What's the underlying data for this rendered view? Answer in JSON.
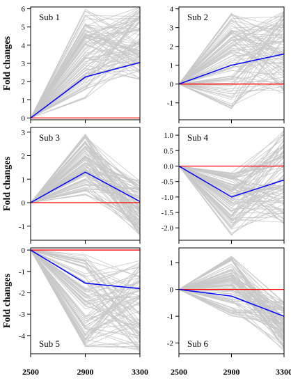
{
  "chart_data": [
    {
      "type": "line",
      "label": "Sub 1",
      "x": [
        2500,
        2900,
        3300
      ],
      "ylim": [
        -0.1,
        6.1
      ],
      "yticks": [
        0,
        1,
        2,
        3,
        4,
        5,
        6
      ],
      "mean": [
        0,
        2.25,
        3.05
      ],
      "baseline": [
        0,
        0,
        0
      ],
      "band": {
        "mid_low": 1.0,
        "mid_high": 6.0,
        "end_low": 2.1,
        "end_high": 6.1
      },
      "ylabel": "Fold changes"
    },
    {
      "type": "line",
      "label": "Sub 2",
      "x": [
        2500,
        2900,
        3300
      ],
      "ylim": [
        -1.9,
        4.1
      ],
      "yticks": [
        -1,
        0,
        1,
        2,
        3,
        4
      ],
      "mean": [
        0,
        1.0,
        1.6
      ],
      "baseline": [
        0,
        0,
        0
      ],
      "band": {
        "mid_low": -1.5,
        "mid_high": 3.8,
        "end_low": -0.5,
        "end_high": 3.9
      },
      "ylabel": ""
    },
    {
      "type": "line",
      "label": "Sub 3",
      "x": [
        2500,
        2900,
        3300
      ],
      "ylim": [
        -1.6,
        3.2
      ],
      "yticks": [
        -1,
        0,
        1,
        2,
        3
      ],
      "mean": [
        0,
        1.3,
        0.05
      ],
      "baseline": [
        0,
        0,
        0
      ],
      "band": {
        "mid_low": 0.3,
        "mid_high": 3.0,
        "end_low": -1.4,
        "end_high": 1.0
      },
      "ylabel": "Fold changes"
    },
    {
      "type": "line",
      "label": "Sub 4",
      "x": [
        2500,
        2900,
        3300
      ],
      "ylim": [
        -2.4,
        1.25
      ],
      "yticks": [
        -2.0,
        -1.5,
        -1.0,
        -0.5,
        0.0,
        0.5,
        1.0
      ],
      "yticklabels": [
        "-2.0",
        "-1.5",
        "-1.0",
        "-0.5",
        "0.0",
        "0.5",
        "1.0"
      ],
      "mean": [
        0,
        -1.0,
        -0.45
      ],
      "baseline": [
        0,
        0,
        0
      ],
      "band": {
        "mid_low": -2.25,
        "mid_high": -0.2,
        "end_low": -1.9,
        "end_high": 1.15
      },
      "ylabel": ""
    },
    {
      "type": "line",
      "label": "Sub 5",
      "x": [
        2500,
        2900,
        3300
      ],
      "ylim": [
        -4.85,
        0.1
      ],
      "yticks": [
        -4,
        -3,
        -2,
        -1,
        0
      ],
      "mean": [
        0,
        -1.55,
        -1.8
      ],
      "baseline": [
        0,
        0,
        0
      ],
      "band": {
        "mid_low": -4.6,
        "mid_high": -0.2,
        "end_low": -4.8,
        "end_high": -0.3
      },
      "ylabel": "Fold changes"
    },
    {
      "type": "line",
      "label": "Sub 6",
      "x": [
        2500,
        2900,
        3300
      ],
      "ylim": [
        -2.4,
        1.55
      ],
      "yticks": [
        -2,
        -1,
        0,
        1
      ],
      "mean": [
        0,
        -0.25,
        -1.0
      ],
      "baseline": [
        0,
        0,
        0
      ],
      "band": {
        "mid_low": -1.0,
        "mid_high": 1.3,
        "end_low": -2.3,
        "end_high": -0.4
      },
      "ylabel": ""
    }
  ],
  "colors": {
    "individual_lines": "#c8c8c8",
    "mean_line": "#0000ff",
    "baseline": "#ff0000",
    "frame": "#000000"
  }
}
